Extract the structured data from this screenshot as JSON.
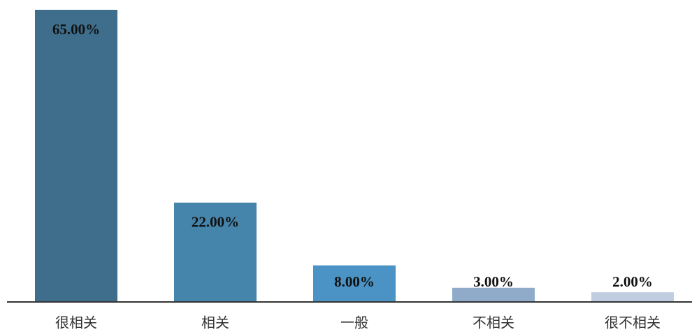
{
  "chart_data": {
    "type": "bar",
    "categories": [
      "很相关",
      "相关",
      "一般",
      "不相关",
      "很不相关"
    ],
    "values": [
      65,
      22,
      8,
      3,
      2
    ],
    "value_labels": [
      "65.00%",
      "22.00%",
      "8.00%",
      "3.00%",
      "2.00%"
    ],
    "colors": [
      "#3e6e8c",
      "#4584ab",
      "#4a93c4",
      "#90abc9",
      "#c0cde0"
    ]
  }
}
